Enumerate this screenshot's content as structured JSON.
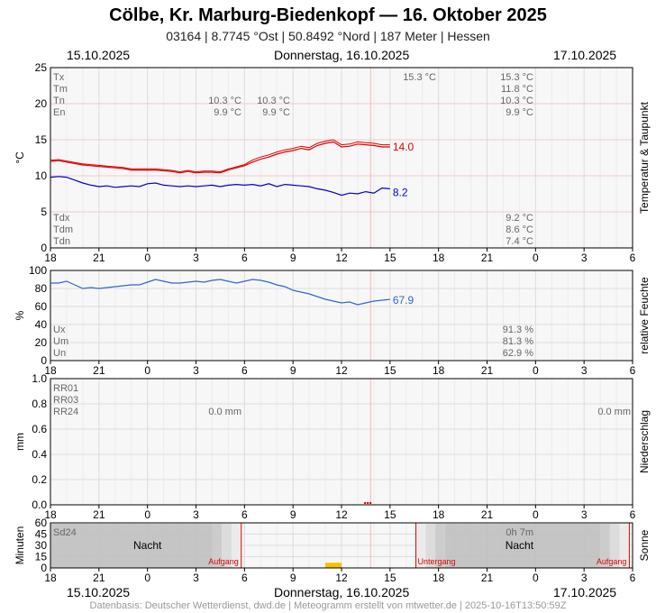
{
  "header": {
    "title": "Cölbe, Kr. Marburg-Biedenkopf  —  16. Oktober 2025",
    "subtitle": "03164  |  8.7745 °Ost  |  50.8492 °Nord  |  187 Meter  |  Hessen"
  },
  "dates": {
    "left": "15.10.2025",
    "center": "Donnerstag, 16.10.2025",
    "right": "17.10.2025"
  },
  "footer": "Datenbasis: Deutscher Wetterdienst, dwd.de | Meteogramm erstellt von mtwetter.de | 2025-10-16T13:50:59Z",
  "colors": {
    "temperature": "#e00000",
    "dewpoint": "#0000cc",
    "humidity": "#3366cc",
    "sunshine": "#f5c400",
    "night": "#bfbfbf",
    "now": "#f2b8b8"
  },
  "chart_data": [
    {
      "type": "line",
      "panel": "temperature",
      "ylabel": "°C",
      "side_label": "Temperatur & Taupunkt",
      "xlim": [
        0,
        36
      ],
      "x_ticks": [
        "18",
        "21",
        "0",
        "3",
        "6",
        "9",
        "12",
        "15",
        "18",
        "21",
        "0",
        "3",
        "6"
      ],
      "ylim": [
        0,
        25
      ],
      "y_ticks": [
        0,
        5,
        10,
        15,
        20,
        25
      ],
      "grid": true,
      "series": [
        {
          "key": "temp",
          "x": [
            0,
            0.5,
            1,
            1.5,
            2,
            2.5,
            3,
            3.5,
            4,
            4.5,
            5,
            5.5,
            6,
            6.5,
            7,
            7.5,
            8,
            8.5,
            9,
            9.5,
            10,
            10.5,
            11,
            11.5,
            12,
            12.5,
            13,
            13.5,
            14,
            14.5,
            15,
            15.5,
            16,
            16.5,
            17,
            17.5,
            18,
            18.5,
            19,
            19.5,
            20,
            20.5,
            21
          ],
          "y": [
            12.0,
            12.1,
            11.9,
            11.7,
            11.5,
            11.4,
            11.3,
            11.2,
            11.1,
            11.0,
            10.8,
            10.8,
            10.8,
            10.8,
            10.7,
            10.6,
            10.4,
            10.6,
            10.4,
            10.5,
            10.5,
            10.4,
            10.8,
            11.1,
            11.4,
            11.9,
            12.3,
            12.6,
            13.0,
            13.3,
            13.5,
            13.8,
            13.6,
            14.2,
            14.5,
            14.7,
            14.0,
            14.1,
            14.4,
            14.3,
            14.2,
            14.0,
            14.0
          ]
        },
        {
          "key": "dew",
          "x": [
            0,
            0.5,
            1,
            1.5,
            2,
            2.5,
            3,
            3.5,
            4,
            4.5,
            5,
            5.5,
            6,
            6.5,
            7,
            7.5,
            8,
            8.5,
            9,
            9.5,
            10,
            10.5,
            11,
            11.5,
            12,
            12.5,
            13,
            13.5,
            14,
            14.5,
            15,
            15.5,
            16,
            16.5,
            17,
            17.5,
            18,
            18.5,
            19,
            19.5,
            20,
            20.5,
            21
          ],
          "y": [
            9.8,
            9.9,
            9.8,
            9.4,
            9.0,
            8.7,
            8.5,
            8.6,
            8.4,
            8.5,
            8.6,
            8.5,
            8.9,
            9.0,
            8.7,
            8.6,
            8.5,
            8.6,
            8.5,
            8.6,
            8.7,
            8.5,
            8.7,
            8.8,
            8.7,
            8.8,
            8.6,
            8.9,
            8.5,
            8.8,
            8.7,
            8.6,
            8.5,
            8.2,
            8.0,
            7.7,
            7.3,
            7.6,
            7.5,
            7.8,
            7.6,
            8.3,
            8.2
          ]
        }
      ],
      "end_labels": {
        "temp": "14.0",
        "dew": "8.2"
      },
      "stats_top": [
        {
          "label": "Tx",
          "prev": "",
          "prev2": "",
          "cur": "15.3 °C",
          "next": "15.3 °C"
        },
        {
          "label": "Tm",
          "prev": "",
          "prev2": "",
          "cur": "",
          "next": "11.8 °C"
        },
        {
          "label": "Tn",
          "prev": "10.3 °C",
          "prev2": "10.3 °C",
          "cur": "",
          "next": "10.3 °C"
        },
        {
          "label": "En",
          "prev": "9.9 °C",
          "prev2": "9.9 °C",
          "cur": "",
          "next": "9.9 °C"
        }
      ],
      "stats_bottom": [
        {
          "label": "Tdx",
          "next": "9.2 °C"
        },
        {
          "label": "Tdm",
          "next": "8.6 °C"
        },
        {
          "label": "Tdn",
          "next": "7.4 °C"
        }
      ]
    },
    {
      "type": "line",
      "panel": "humidity",
      "ylabel": "%",
      "side_label": "relative Feuchte",
      "xlim": [
        0,
        36
      ],
      "ylim": [
        0,
        100
      ],
      "y_ticks": [
        0,
        20,
        40,
        60,
        80,
        100
      ],
      "series": [
        {
          "key": "rh",
          "x": [
            0,
            0.5,
            1,
            1.5,
            2,
            2.5,
            3,
            3.5,
            4,
            4.5,
            5,
            5.5,
            6,
            6.5,
            7,
            7.5,
            8,
            8.5,
            9,
            9.5,
            10,
            10.5,
            11,
            11.5,
            12,
            12.5,
            13,
            13.5,
            14,
            14.5,
            15,
            15.5,
            16,
            16.5,
            17,
            17.5,
            18,
            18.5,
            19,
            19.5,
            20,
            20.5,
            21
          ],
          "y": [
            86,
            86,
            88,
            84,
            80,
            81,
            80,
            81,
            82,
            83,
            84,
            84,
            87,
            90,
            88,
            86,
            86,
            87,
            88,
            87,
            89,
            90,
            88,
            86,
            88,
            90,
            89,
            87,
            84,
            82,
            78,
            76,
            74,
            71,
            68,
            66,
            64,
            65,
            62,
            64,
            66,
            67,
            67.9
          ]
        }
      ],
      "end_labels": {
        "rh": "67.9"
      },
      "stats": [
        {
          "label": "Ux",
          "next": "91.3 %"
        },
        {
          "label": "Um",
          "next": "81.3 %"
        },
        {
          "label": "Un",
          "next": "62.9 %"
        }
      ]
    },
    {
      "type": "bar",
      "panel": "precipitation",
      "ylabel": "mm",
      "side_label": "Niederschlag",
      "xlim": [
        0,
        36
      ],
      "ylim": [
        0,
        1.0
      ],
      "y_ticks": [
        "0.0",
        "0.2",
        "0.4",
        "0.6",
        "0.8",
        "1.0"
      ],
      "stats": [
        {
          "label": "RR01",
          "prev": "",
          "next": ""
        },
        {
          "label": "RR03",
          "prev": "",
          "next": ""
        },
        {
          "label": "RR24",
          "prev": "0.0 mm",
          "next": "0.0 mm"
        }
      ]
    },
    {
      "type": "bar",
      "panel": "sunshine",
      "ylabel": "Minuten",
      "side_label": "Sonne",
      "xlim": [
        0,
        36
      ],
      "ylim": [
        0,
        60
      ],
      "y_ticks": [
        0,
        15,
        30,
        45,
        60
      ],
      "series": [
        {
          "key": "sun",
          "x": [
            17.5
          ],
          "y": [
            7
          ]
        }
      ],
      "sunrise": [
        11.8,
        35.8
      ],
      "sunset": [
        22.6
      ],
      "stats": [
        {
          "label": "Sd24",
          "next": "0h 7m"
        }
      ],
      "night_label": "Nacht",
      "sunrise_label": "Aufgang",
      "sunset_label": "Untergang"
    }
  ]
}
